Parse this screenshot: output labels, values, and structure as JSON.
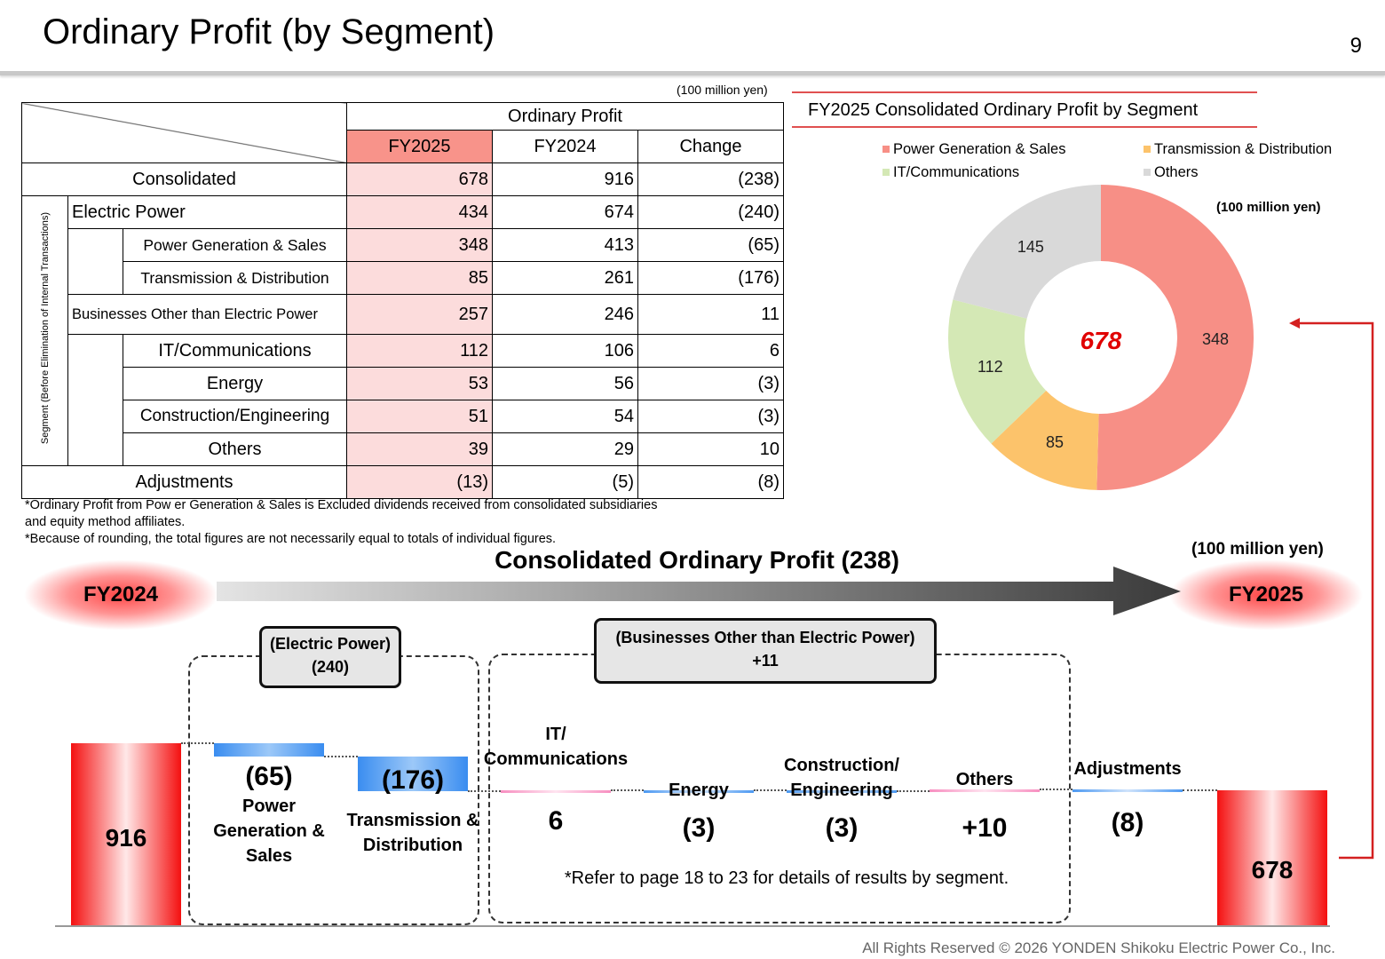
{
  "header": {
    "title": "Ordinary Profit (by Segment)",
    "page_number": "9"
  },
  "table": {
    "unit": "(100 million yen)",
    "group_header": "Ordinary Profit",
    "columns": [
      "FY2025",
      "FY2024",
      "Change"
    ],
    "side_label": "Segment (Before Elimination of Internal Transactions)",
    "rows": {
      "consolidated": {
        "label": "Consolidated",
        "fy2025": "678",
        "fy2024": "916",
        "change": "(238)"
      },
      "electric_power": {
        "label": "Electric Power",
        "fy2025": "434",
        "fy2024": "674",
        "change": "(240)"
      },
      "power_gen": {
        "label": "Power Generation & Sales",
        "fy2025": "348",
        "fy2024": "413",
        "change": "(65)"
      },
      "transmission": {
        "label": "Transmission & Distribution",
        "fy2025": "85",
        "fy2024": "261",
        "change": "(176)"
      },
      "other_business": {
        "label": "Businesses Other than Electric Power",
        "fy2025": "257",
        "fy2024": "246",
        "change": "11"
      },
      "it": {
        "label": "IT/Communications",
        "fy2025": "112",
        "fy2024": "106",
        "change": "6"
      },
      "energy": {
        "label": "Energy",
        "fy2025": "53",
        "fy2024": "56",
        "change": "(3)"
      },
      "construction": {
        "label": "Construction/Engineering",
        "fy2025": "51",
        "fy2024": "54",
        "change": "(3)"
      },
      "others": {
        "label": "Others",
        "fy2025": "39",
        "fy2024": "29",
        "change": "10"
      },
      "adjustments": {
        "label": "Adjustments",
        "fy2025": "(13)",
        "fy2024": "(5)",
        "change": "(8)"
      }
    },
    "note1": "*Ordinary Profit from Pow er Generation & Sales is Excluded dividends received from consolidated subsidiaries and equity method affiliates.",
    "note2": "*Because of rounding, the total figures are not necessarily equal to totals of individual figures."
  },
  "pie": {
    "title": "FY2025  Consolidated Ordinary Profit by Segment",
    "unit": "(100 million yen)",
    "center_value": "678"
  },
  "waterfall": {
    "title": "Consolidated Ordinary Profit  (238)",
    "unit": "(100 million yen)",
    "from_label": "FY2024",
    "to_label": "FY2025",
    "electric_tag": {
      "line1": "(Electric Power)",
      "line2": "(240)"
    },
    "other_tag": {
      "line1": "(Businesses Other than Electric Power)",
      "line2": "+11"
    },
    "start_value": "916",
    "end_value": "678",
    "steps": {
      "power_gen": {
        "value": "(65)",
        "label_lines": [
          "Power",
          "Generation &",
          "Sales"
        ]
      },
      "transmission": {
        "value": "(176)",
        "label_lines": [
          "Transmission &",
          "Distribution"
        ]
      },
      "it": {
        "value": "6",
        "label_lines": [
          "IT/",
          "Communications"
        ]
      },
      "energy": {
        "value": "(3)",
        "label_lines": [
          "Energy"
        ]
      },
      "construction": {
        "value": "(3)",
        "label_lines": [
          "Construction/",
          "Engineering"
        ]
      },
      "others": {
        "value": "+10",
        "label_lines": [
          "Others"
        ]
      },
      "adjustments": {
        "value": "(8)",
        "label_lines": [
          "Adjustments"
        ]
      }
    },
    "footnote": "*Refer to page 18 to 23 for details of results by segment."
  },
  "footer": {
    "copyright": "All Rights Reserved ©  2026 YONDEN Shikoku Electric Power Co., Inc."
  },
  "colors": {
    "power_gen": "#f78f86",
    "transmission": "#fcc36b",
    "it": "#d4e8b5",
    "others": "#d9d9d9",
    "fy_highlight": "#f8938a",
    "accent_red": "#e00000"
  },
  "chart_data": [
    {
      "type": "pie",
      "title": "FY2025  Consolidated Ordinary Profit by Segment",
      "categories": [
        "Power Generation & Sales",
        "Transmission & Distribution",
        "IT/Communications",
        "Others"
      ],
      "values": [
        348,
        85,
        112,
        145
      ],
      "center_label": "678",
      "unit": "(100 million yen)",
      "legend": "top"
    },
    {
      "type": "bar",
      "subtype": "waterfall",
      "title": "Consolidated Ordinary Profit  (238)",
      "categories": [
        "FY2024",
        "Power Generation & Sales",
        "Transmission & Distribution",
        "IT/Communications",
        "Energy",
        "Construction/Engineering",
        "Others",
        "Adjustments",
        "FY2025"
      ],
      "values": [
        916,
        -65,
        -176,
        6,
        -3,
        -3,
        10,
        -8,
        678
      ],
      "unit": "(100 million yen)"
    }
  ]
}
